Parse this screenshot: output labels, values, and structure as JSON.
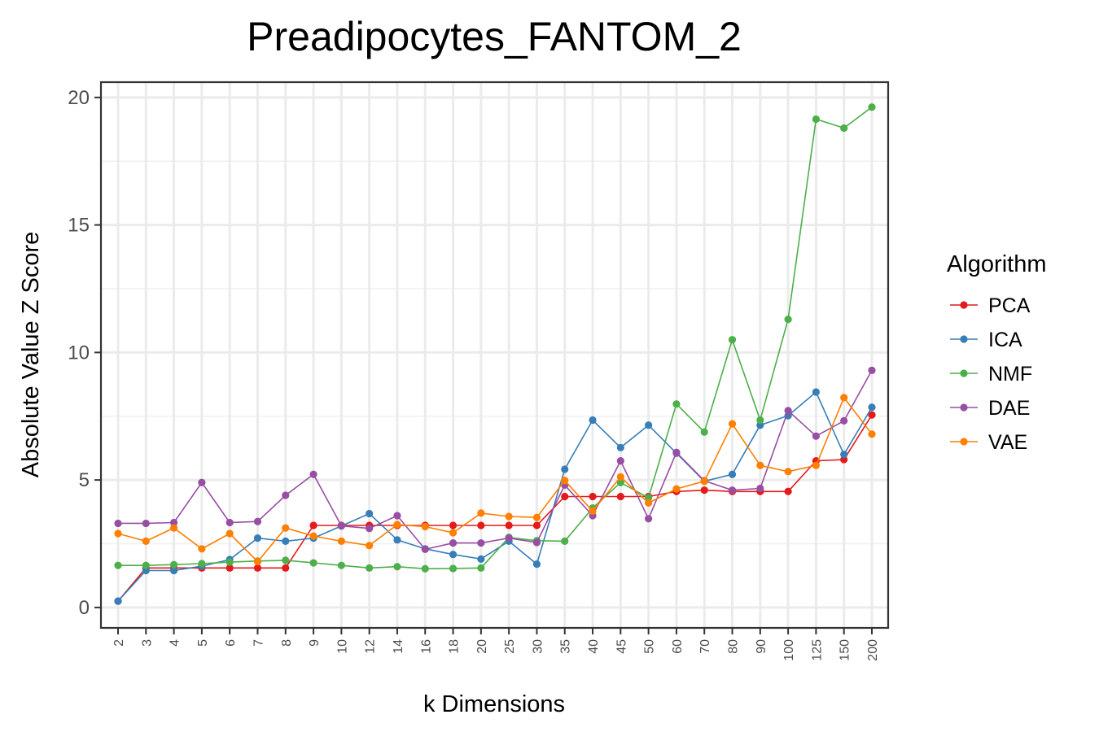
{
  "chart_data": {
    "type": "line",
    "title": "Preadipocytes_FANTOM_2",
    "xlabel": "k Dimensions",
    "ylabel": "Absolute Value Z Score",
    "ylim": [
      -0.8,
      20.6
    ],
    "yticks": [
      0,
      5,
      10,
      15,
      20
    ],
    "grid": true,
    "legend": {
      "title": "Algorithm",
      "position": "right"
    },
    "categories": [
      "2",
      "3",
      "4",
      "5",
      "6",
      "7",
      "8",
      "9",
      "10",
      "12",
      "14",
      "16",
      "18",
      "20",
      "25",
      "30",
      "35",
      "40",
      "45",
      "50",
      "60",
      "70",
      "80",
      "90",
      "100",
      "125",
      "150",
      "200"
    ],
    "series": [
      {
        "name": "PCA",
        "color": "#e41a1c",
        "values": [
          0.25,
          1.55,
          1.55,
          1.55,
          1.55,
          1.55,
          1.55,
          3.22,
          3.22,
          3.22,
          3.22,
          3.22,
          3.22,
          3.22,
          3.22,
          3.22,
          4.35,
          4.35,
          4.35,
          4.35,
          4.55,
          4.6,
          4.55,
          4.55,
          4.55,
          5.75,
          5.8,
          7.55
        ]
      },
      {
        "name": "ICA",
        "color": "#377eb8",
        "values": [
          0.25,
          1.45,
          1.45,
          1.62,
          1.88,
          2.72,
          2.6,
          2.72,
          3.2,
          3.68,
          2.65,
          2.3,
          2.08,
          1.9,
          2.6,
          1.7,
          5.42,
          7.35,
          6.27,
          7.15,
          6.05,
          4.95,
          5.22,
          7.15,
          7.52,
          8.45,
          6.0,
          7.85
        ]
      },
      {
        "name": "NMF",
        "color": "#4daf4a",
        "values": [
          1.65,
          1.65,
          1.68,
          1.72,
          1.78,
          1.82,
          1.85,
          1.75,
          1.65,
          1.55,
          1.6,
          1.52,
          1.53,
          1.55,
          2.75,
          2.62,
          2.6,
          3.9,
          4.9,
          4.3,
          7.98,
          6.88,
          10.5,
          7.35,
          11.3,
          19.15,
          18.8,
          19.62
        ]
      },
      {
        "name": "DAE",
        "color": "#984ea3",
        "values": [
          3.3,
          3.3,
          3.33,
          4.9,
          3.33,
          3.37,
          4.4,
          5.22,
          3.2,
          3.1,
          3.6,
          2.28,
          2.53,
          2.53,
          2.72,
          2.55,
          4.8,
          3.6,
          5.75,
          3.48,
          6.08,
          4.97,
          4.6,
          4.67,
          7.72,
          6.72,
          7.32,
          9.3
        ]
      },
      {
        "name": "VAE",
        "color": "#ff7f00",
        "values": [
          2.9,
          2.6,
          3.12,
          2.3,
          2.9,
          1.8,
          3.12,
          2.8,
          2.6,
          2.43,
          3.25,
          3.17,
          2.93,
          3.7,
          3.57,
          3.53,
          4.98,
          3.78,
          5.12,
          4.1,
          4.65,
          4.95,
          7.2,
          5.57,
          5.33,
          5.57,
          8.23,
          6.8
        ]
      }
    ]
  }
}
